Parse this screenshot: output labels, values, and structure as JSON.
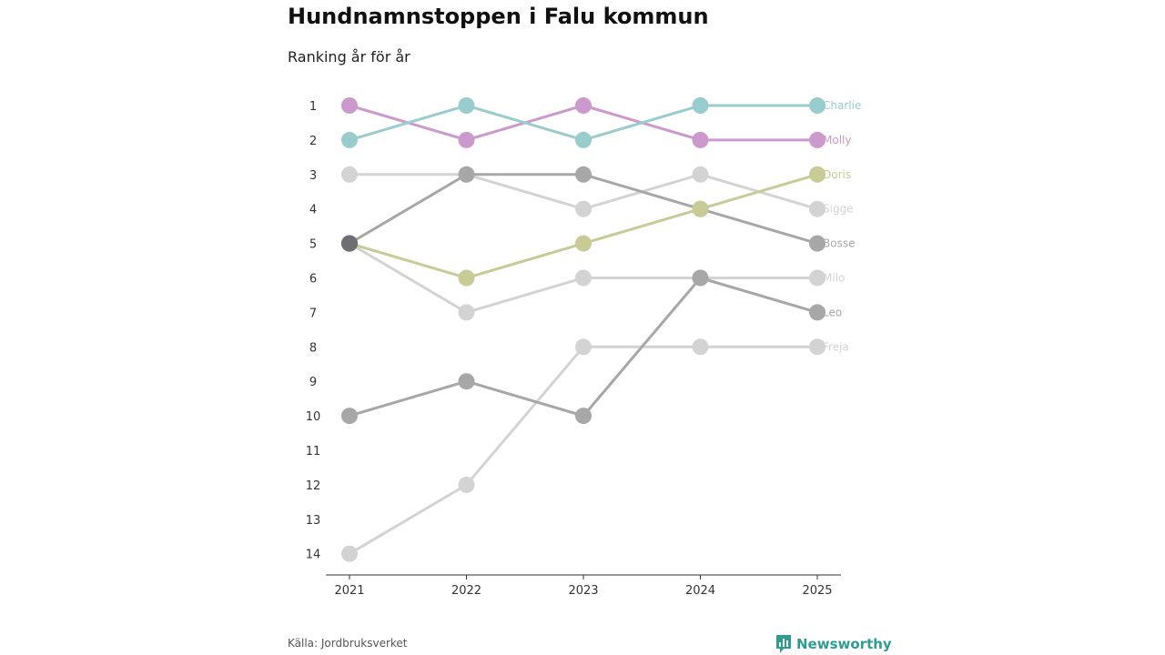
{
  "title": "Hundnamnstoppen i Falu kommun",
  "subtitle": "Ranking år för år",
  "source": "Källa: Jordbruksverket",
  "brand": "Newsworthy",
  "colors": {
    "brand": "#2e9c91",
    "axis": "#333333",
    "tick": "#333333"
  },
  "chart_data": {
    "type": "line",
    "title": "Hundnamnstoppen i Falu kommun",
    "subtitle": "Ranking år för år",
    "x": [
      "2021",
      "2022",
      "2023",
      "2024",
      "2025"
    ],
    "ylim": [
      1,
      14
    ],
    "y_inverted": true,
    "yticks": [
      "1",
      "2",
      "3",
      "4",
      "5",
      "6",
      "7",
      "8",
      "9",
      "10",
      "11",
      "12",
      "13",
      "14"
    ],
    "xlabel": "",
    "ylabel": "",
    "grid": false,
    "series": [
      {
        "name": "Freja",
        "values": [
          14,
          12,
          8,
          8,
          8
        ],
        "color": "#d3d3d3"
      },
      {
        "name": "Milo",
        "values": [
          5,
          7,
          6,
          6,
          6
        ],
        "color": "#d3d3d3"
      },
      {
        "name": "Sigge",
        "values": [
          3,
          3,
          4,
          3,
          4
        ],
        "color": "#d3d3d3"
      },
      {
        "name": "Leo",
        "values": [
          10,
          9,
          10,
          6,
          7
        ],
        "color": "#a7a7a7"
      },
      {
        "name": "Bosse",
        "values": [
          5,
          3,
          3,
          4,
          5
        ],
        "color": "#a7a7a7"
      },
      {
        "name": "Doris",
        "values": [
          5,
          6,
          5,
          4,
          3
        ],
        "color": "#c9cb96"
      },
      {
        "name": "Molly",
        "values": [
          1,
          2,
          1,
          2,
          2
        ],
        "color": "#cc99cc"
      },
      {
        "name": "Charlie",
        "values": [
          2,
          1,
          2,
          1,
          1
        ],
        "color": "#99cccc"
      }
    ],
    "overlap_color": "#6e6e73"
  }
}
